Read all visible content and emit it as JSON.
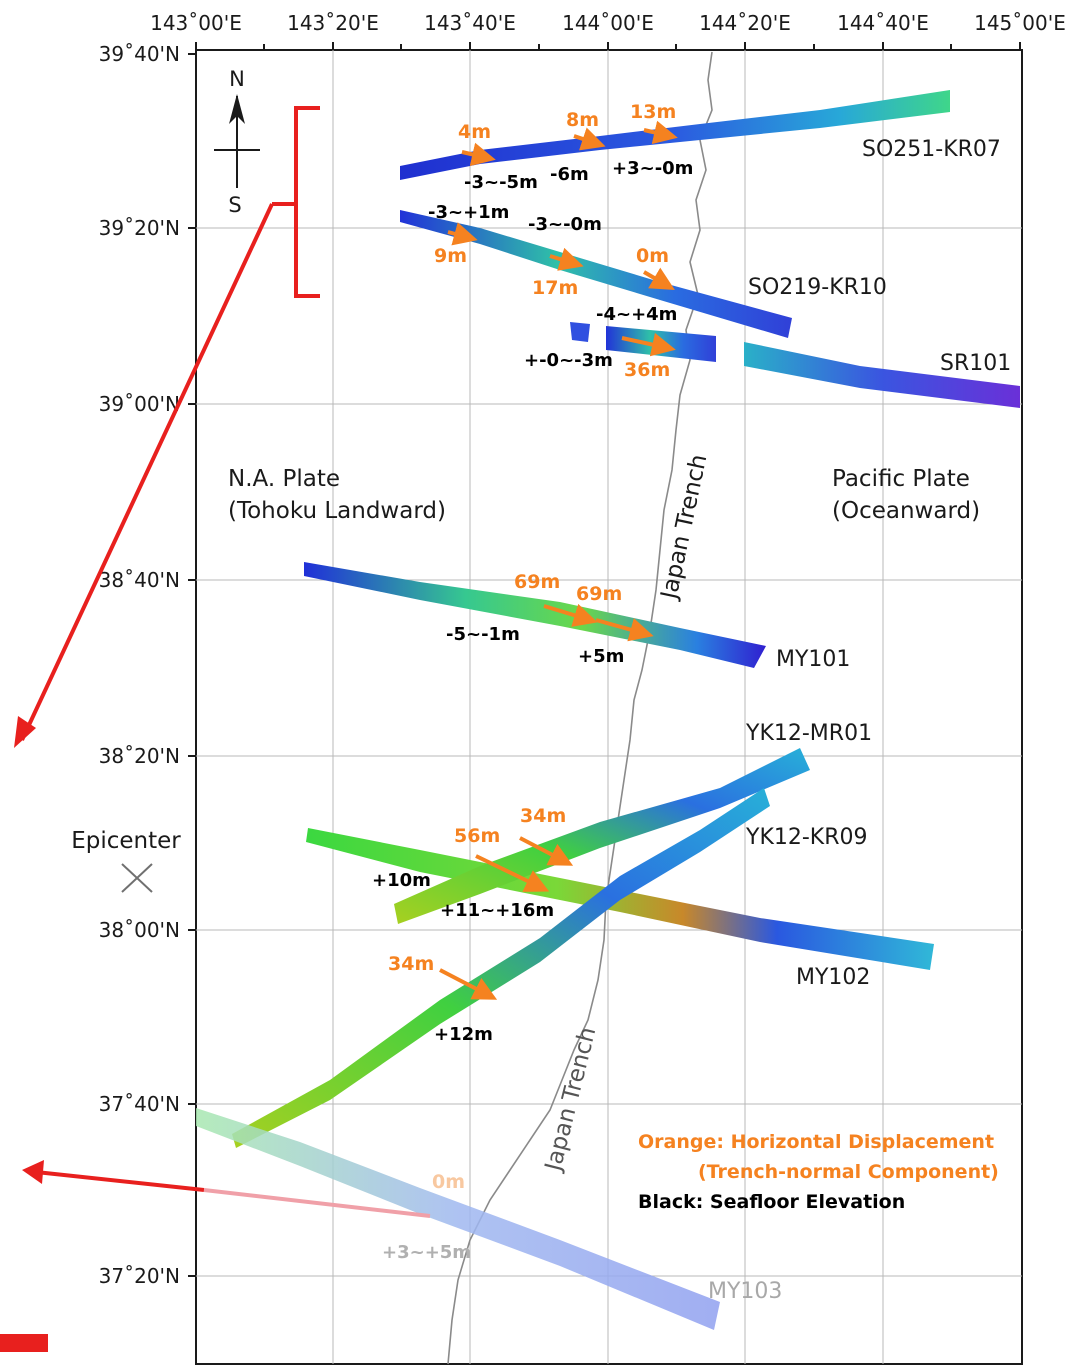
{
  "map": {
    "lon_ticks": [
      "143˚00'E",
      "143˚20'E",
      "143˚40'E",
      "144˚00'E",
      "144˚20'E",
      "144˚40'E",
      "145˚00'E"
    ],
    "lat_ticks": [
      "39˚40'N",
      "39˚20'N",
      "39˚00'N",
      "38˚40'N",
      "38˚20'N",
      "38˚00'N",
      "37˚40'N",
      "37˚20'N"
    ],
    "north_arrow": {
      "n": "N",
      "s": "S"
    },
    "plates": {
      "na_line1": "N.A. Plate",
      "na_line2": "(Tohoku Landward)",
      "pac_line1": "Pacific Plate",
      "pac_line2": "(Oceanward)"
    },
    "trench_label": "Japan Trench",
    "epicenter": "Epicenter",
    "tracks": {
      "so251": "SO251-KR07",
      "so219": "SO219-KR10",
      "sr101": "SR101",
      "my101": "MY101",
      "yk12mr01": "YK12-MR01",
      "yk12kr09": "YK12-KR09",
      "my102": "MY102",
      "my103": "MY103"
    },
    "horizontal": {
      "h1": "4m",
      "h2": "8m",
      "h3": "13m",
      "h4": "9m",
      "h5": "17m",
      "h6": "0m",
      "h7": "36m",
      "h8": "69m",
      "h9": "69m",
      "h10": "34m",
      "h11": "56m",
      "h12": "34m",
      "h13": "0m"
    },
    "elevation": {
      "e1": "-3~-5m",
      "e2": "-6m",
      "e3": "+3~-0m",
      "e4": "-3~+1m",
      "e5": "-3~-0m",
      "e6": "-4~+4m",
      "e7": "+-0~-3m",
      "e8": "-5~-1m",
      "e9": "+5m",
      "e10": "+10m",
      "e11": "+11~+16m",
      "e12": "+12m",
      "e13": "+3~+5m"
    },
    "legend": {
      "orange_line1": "Orange: Horizontal Displacement",
      "orange_line2": "(Trench-normal Component)",
      "black": "Black: Seafloor Elevation"
    }
  },
  "colors": {
    "orange": "#f58220",
    "red_arrow": "#e8201e",
    "track_blue": "#2a3fd6",
    "track_green": "#3ecf4a"
  }
}
